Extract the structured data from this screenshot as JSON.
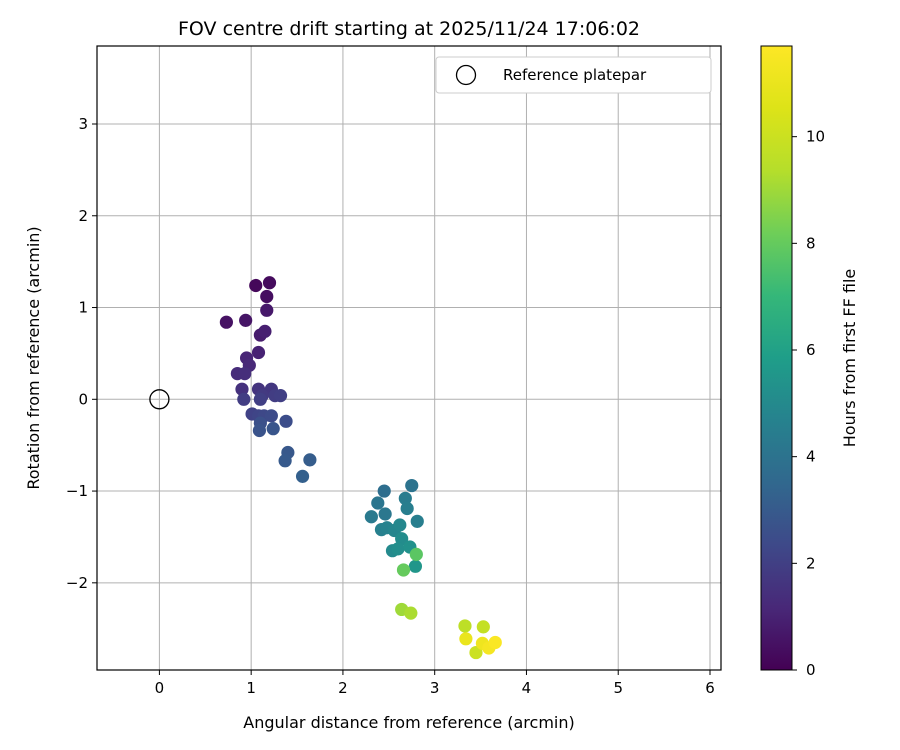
{
  "chart_data": {
    "type": "scatter",
    "title": "FOV centre drift starting at 2025/11/24 17:06:02",
    "xlabel": "Angular distance from reference (arcmin)",
    "ylabel": "Rotation from reference (arcmin)",
    "xlim": [
      -0.68,
      6.12
    ],
    "ylim": [
      -2.95,
      3.85
    ],
    "xticks": [
      0,
      1,
      2,
      3,
      4,
      5,
      6
    ],
    "xtick_labels": [
      "0",
      "1",
      "2",
      "3",
      "4",
      "5",
      "6"
    ],
    "yticks": [
      -2,
      -1,
      0,
      1,
      2,
      3
    ],
    "ytick_labels": [
      "−2",
      "−1",
      "0",
      "1",
      "2",
      "3"
    ],
    "grid": true,
    "legend": {
      "location": "top-right",
      "entries": [
        "Reference platepar"
      ]
    },
    "reference_point": {
      "x": 0,
      "y": 0,
      "label": "Reference platepar"
    },
    "colorbar": {
      "label": "Hours from first FF file",
      "range": [
        0,
        11.7
      ],
      "ticks": [
        0,
        2,
        4,
        6,
        8,
        10
      ],
      "tick_labels": [
        "0",
        "2",
        "4",
        "6",
        "8",
        "10"
      ],
      "colormap": "viridis"
    },
    "points": [
      {
        "x": 1.05,
        "y": 1.24,
        "h": 0.2
      },
      {
        "x": 1.2,
        "y": 1.27,
        "h": 0.3
      },
      {
        "x": 1.17,
        "y": 1.12,
        "h": 0.4
      },
      {
        "x": 0.73,
        "y": 0.84,
        "h": 0.5
      },
      {
        "x": 0.94,
        "y": 0.86,
        "h": 0.6
      },
      {
        "x": 1.17,
        "y": 0.97,
        "h": 0.7
      },
      {
        "x": 1.1,
        "y": 0.7,
        "h": 0.8
      },
      {
        "x": 1.15,
        "y": 0.74,
        "h": 0.9
      },
      {
        "x": 1.08,
        "y": 0.51,
        "h": 1.0
      },
      {
        "x": 0.95,
        "y": 0.45,
        "h": 1.1
      },
      {
        "x": 0.98,
        "y": 0.37,
        "h": 1.2
      },
      {
        "x": 0.85,
        "y": 0.28,
        "h": 1.3
      },
      {
        "x": 0.93,
        "y": 0.28,
        "h": 1.4
      },
      {
        "x": 0.9,
        "y": 0.11,
        "h": 1.5
      },
      {
        "x": 1.08,
        "y": 0.11,
        "h": 1.6
      },
      {
        "x": 1.22,
        "y": 0.11,
        "h": 1.7
      },
      {
        "x": 1.12,
        "y": 0.04,
        "h": 1.8
      },
      {
        "x": 1.26,
        "y": 0.04,
        "h": 1.9
      },
      {
        "x": 1.32,
        "y": 0.04,
        "h": 2.0
      },
      {
        "x": 0.92,
        "y": 0.0,
        "h": 1.9
      },
      {
        "x": 1.1,
        "y": 0.0,
        "h": 2.0
      },
      {
        "x": 1.01,
        "y": -0.16,
        "h": 2.1
      },
      {
        "x": 1.08,
        "y": -0.18,
        "h": 2.2
      },
      {
        "x": 1.14,
        "y": -0.18,
        "h": 2.3
      },
      {
        "x": 1.22,
        "y": -0.18,
        "h": 2.4
      },
      {
        "x": 1.38,
        "y": -0.24,
        "h": 2.5
      },
      {
        "x": 1.1,
        "y": -0.26,
        "h": 2.6
      },
      {
        "x": 1.09,
        "y": -0.34,
        "h": 2.7
      },
      {
        "x": 1.24,
        "y": -0.32,
        "h": 2.8
      },
      {
        "x": 1.4,
        "y": -0.58,
        "h": 2.9
      },
      {
        "x": 1.37,
        "y": -0.67,
        "h": 3.0
      },
      {
        "x": 1.64,
        "y": -0.66,
        "h": 3.1
      },
      {
        "x": 1.56,
        "y": -0.84,
        "h": 3.2
      },
      {
        "x": 2.45,
        "y": -1.0,
        "h": 3.8
      },
      {
        "x": 2.75,
        "y": -0.94,
        "h": 4.0
      },
      {
        "x": 2.38,
        "y": -1.13,
        "h": 4.1
      },
      {
        "x": 2.46,
        "y": -1.25,
        "h": 4.2
      },
      {
        "x": 2.31,
        "y": -1.28,
        "h": 4.3
      },
      {
        "x": 2.68,
        "y": -1.08,
        "h": 4.4
      },
      {
        "x": 2.7,
        "y": -1.19,
        "h": 4.5
      },
      {
        "x": 2.81,
        "y": -1.33,
        "h": 4.5
      },
      {
        "x": 2.42,
        "y": -1.42,
        "h": 4.6
      },
      {
        "x": 2.48,
        "y": -1.4,
        "h": 4.7
      },
      {
        "x": 2.56,
        "y": -1.43,
        "h": 4.8
      },
      {
        "x": 2.62,
        "y": -1.37,
        "h": 4.9
      },
      {
        "x": 2.54,
        "y": -1.65,
        "h": 5.0
      },
      {
        "x": 2.64,
        "y": -1.52,
        "h": 5.1
      },
      {
        "x": 2.6,
        "y": -1.63,
        "h": 5.2
      },
      {
        "x": 2.73,
        "y": -1.61,
        "h": 5.3
      },
      {
        "x": 2.79,
        "y": -1.82,
        "h": 5.5
      },
      {
        "x": 2.8,
        "y": -1.69,
        "h": 7.8
      },
      {
        "x": 2.66,
        "y": -1.86,
        "h": 8.0
      },
      {
        "x": 2.64,
        "y": -2.29,
        "h": 9.0
      },
      {
        "x": 2.74,
        "y": -2.33,
        "h": 9.2
      },
      {
        "x": 3.33,
        "y": -2.47,
        "h": 9.6
      },
      {
        "x": 3.53,
        "y": -2.48,
        "h": 9.8
      },
      {
        "x": 3.45,
        "y": -2.76,
        "h": 10.0
      },
      {
        "x": 3.34,
        "y": -2.61,
        "h": 11.0
      },
      {
        "x": 3.52,
        "y": -2.66,
        "h": 11.2
      },
      {
        "x": 3.59,
        "y": -2.71,
        "h": 11.4
      },
      {
        "x": 3.66,
        "y": -2.65,
        "h": 11.6
      }
    ]
  }
}
